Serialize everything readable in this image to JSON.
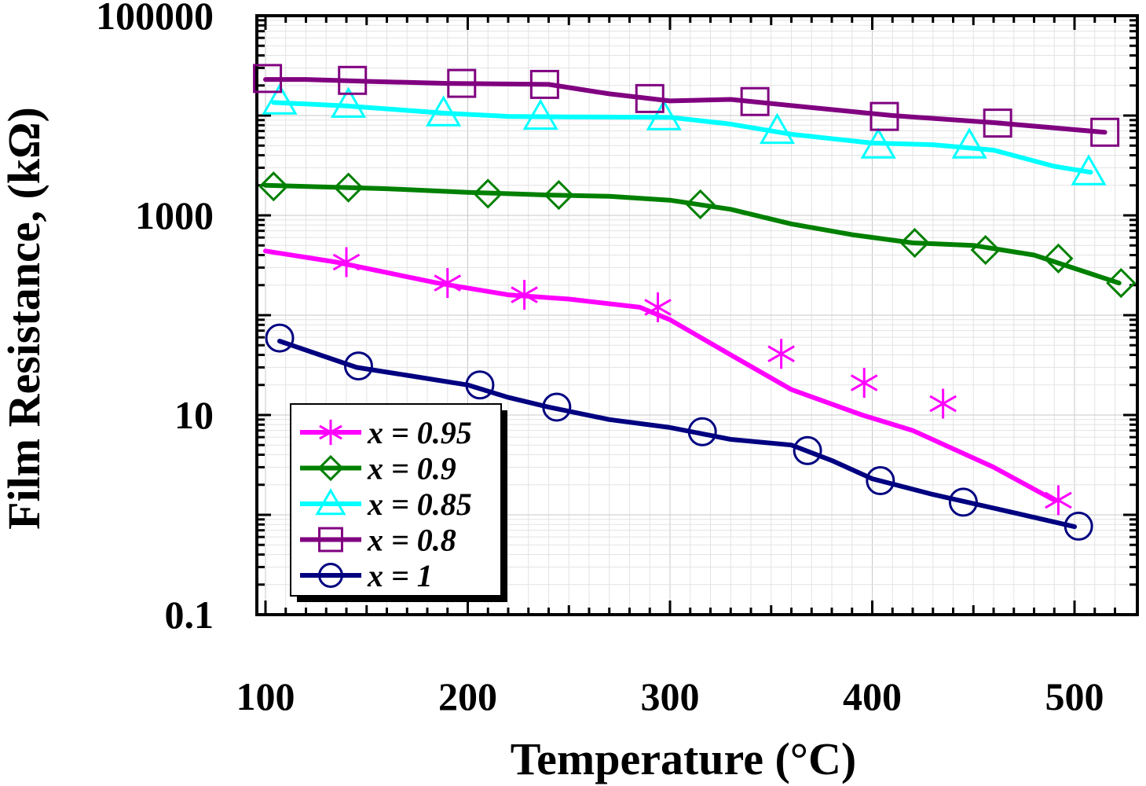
{
  "chart_data": {
    "type": "line",
    "title": "",
    "xlabel": "Temperature (°C)",
    "ylabel": "Film Resistance, (kΩ)",
    "xlim": [
      100,
      520
    ],
    "ylim": [
      0.1,
      100000
    ],
    "yscale": "log",
    "x_ticks": [
      100,
      200,
      300,
      400,
      500
    ],
    "x_tick_labels": [
      "100",
      "200",
      "300",
      "400",
      "500"
    ],
    "y_ticks": [
      0.1,
      10,
      1000,
      100000
    ],
    "y_tick_labels": [
      "0.1",
      "10",
      "1000",
      "100000"
    ],
    "grid": true,
    "legend_position": "bottom-left",
    "series": [
      {
        "name": "x = 0.95",
        "color": "#ff00ff",
        "marker": "asterisk",
        "line": [
          [
            100,
            440
          ],
          [
            135,
            340
          ],
          [
            185,
            210
          ],
          [
            220,
            160
          ],
          [
            250,
            145
          ],
          [
            285,
            120
          ],
          [
            300,
            90
          ],
          [
            330,
            40
          ],
          [
            360,
            18
          ],
          [
            395,
            10
          ],
          [
            420,
            7
          ],
          [
            460,
            3
          ],
          [
            490,
            1.4
          ]
        ],
        "markers": [
          [
            140,
            340
          ],
          [
            190,
            210
          ],
          [
            228,
            160
          ],
          [
            294,
            120
          ],
          [
            355,
            41
          ],
          [
            396,
            21
          ],
          [
            435,
            13
          ],
          [
            492,
            1.4
          ]
        ]
      },
      {
        "name": "x = 0.9",
        "color": "#008000",
        "marker": "diamond",
        "line": [
          [
            100,
            2000
          ],
          [
            140,
            1900
          ],
          [
            160,
            1850
          ],
          [
            200,
            1700
          ],
          [
            240,
            1600
          ],
          [
            270,
            1550
          ],
          [
            300,
            1420
          ],
          [
            330,
            1150
          ],
          [
            360,
            820
          ],
          [
            390,
            640
          ],
          [
            420,
            530
          ],
          [
            450,
            500
          ],
          [
            480,
            400
          ],
          [
            522,
            210
          ]
        ],
        "markers": [
          [
            104,
            1950
          ],
          [
            141,
            1900
          ],
          [
            210,
            1650
          ],
          [
            245,
            1600
          ],
          [
            315,
            1290
          ],
          [
            421,
            530
          ],
          [
            456,
            450
          ],
          [
            492,
            370
          ],
          [
            523,
            210
          ]
        ]
      },
      {
        "name": "x = 0.85",
        "color": "#00ffff",
        "marker": "triangle",
        "line": [
          [
            104,
            13500
          ],
          [
            140,
            12500
          ],
          [
            190,
            10500
          ],
          [
            220,
            9800
          ],
          [
            250,
            9700
          ],
          [
            300,
            9600
          ],
          [
            330,
            8200
          ],
          [
            360,
            6500
          ],
          [
            400,
            5300
          ],
          [
            430,
            5100
          ],
          [
            460,
            4500
          ],
          [
            490,
            3100
          ],
          [
            508,
            2700
          ]
        ],
        "markers": [
          [
            107,
            13800
          ],
          [
            141,
            12800
          ],
          [
            188,
            10500
          ],
          [
            236,
            9700
          ],
          [
            297,
            9600
          ],
          [
            353,
            7000
          ],
          [
            403,
            5000
          ],
          [
            448,
            5000
          ],
          [
            507,
            2700
          ]
        ]
      },
      {
        "name": "x = 0.8",
        "color": "#800080",
        "marker": "square",
        "line": [
          [
            100,
            23000
          ],
          [
            120,
            23000
          ],
          [
            150,
            22000
          ],
          [
            190,
            21000
          ],
          [
            240,
            20500
          ],
          [
            270,
            16500
          ],
          [
            300,
            14000
          ],
          [
            330,
            14500
          ],
          [
            370,
            12000
          ],
          [
            410,
            10000
          ],
          [
            460,
            8500
          ],
          [
            515,
            6800
          ]
        ],
        "markers": [
          [
            101,
            23500
          ],
          [
            143,
            22500
          ],
          [
            197,
            21000
          ],
          [
            238,
            20500
          ],
          [
            290,
            14800
          ],
          [
            342,
            13800
          ],
          [
            406,
            9800
          ],
          [
            462,
            8400
          ],
          [
            515,
            6800
          ]
        ]
      },
      {
        "name": "x = 1",
        "color": "#000080",
        "marker": "circle",
        "line": [
          [
            107,
            55
          ],
          [
            145,
            30
          ],
          [
            170,
            25
          ],
          [
            200,
            20
          ],
          [
            220,
            15
          ],
          [
            240,
            12
          ],
          [
            270,
            9
          ],
          [
            300,
            7.5
          ],
          [
            330,
            5.7
          ],
          [
            360,
            5
          ],
          [
            380,
            3.5
          ],
          [
            400,
            2.3
          ],
          [
            430,
            1.6
          ],
          [
            470,
            1.05
          ],
          [
            500,
            0.76
          ]
        ],
        "markers": [
          [
            107,
            59
          ],
          [
            146,
            31
          ],
          [
            206,
            20
          ],
          [
            244,
            12
          ],
          [
            316,
            6.8
          ],
          [
            368,
            4.4
          ],
          [
            404,
            2.2
          ],
          [
            445,
            1.34
          ],
          [
            502,
            0.77
          ]
        ]
      }
    ]
  }
}
